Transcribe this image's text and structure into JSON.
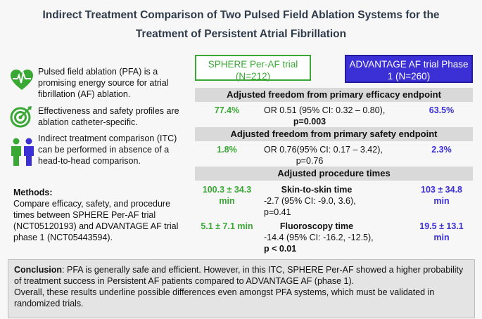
{
  "header": {
    "title": "Indirect Treatment Comparison of Two Pulsed Field Ablation Systems for the Treatment of Persistent Atrial Fibrillation"
  },
  "key_points": [
    "Pulsed field ablation (PFA) is a promising energy source for atrial fibrillation (AF) ablation.",
    "Effectiveness and safety profiles are ablation catheter-specific.",
    "Indirect treatment comparison (ITC) can be performed in absence of a head-to-head comparison."
  ],
  "methods": {
    "label": "Methods:",
    "text": "Compare efficacy, safety, and procedure times between SPHERE Per-AF trial (NCT05120193) and ADVANTAGE AF trial phase 1 (NCT05443594)."
  },
  "trials": [
    "SPHERE Per-AF trial (N=212)",
    "ADVANTAGE AF trial Phase 1 (N=260)"
  ],
  "sections": [
    {
      "title": "Adjusted freedom from primary efficacy endpoint",
      "rows": [
        {
          "left": "77.4%",
          "stat": "OR 0.51 (95% CI: 0.32 – 0.80),",
          "p": "p=0.003",
          "right": "63.5%"
        }
      ]
    },
    {
      "title": "Adjusted freedom from primary safety endpoint",
      "rows": [
        {
          "left": "1.8%",
          "stat": "OR 0.76(95% CI: 0.17 – 3.42),",
          "p": "p=0.76",
          "right": "2.3%"
        }
      ]
    },
    {
      "title": "Adjusted procedure times",
      "rows": [
        {
          "left": "100.3 ± 34.3 min",
          "label": "Skin-to-skin time",
          "stat": "-2.7 (95% CI: -9.0, 3.6),",
          "p": "p=0.41",
          "right": "103 ± 34.8 min"
        },
        {
          "left": "5.1 ± 7.1 min",
          "label": "Fluoroscopy time",
          "stat": "-14.4 (95% CI: -16.2, -12.5),",
          "p": "p < 0.01",
          "right": "19.5 ± 13.1 min"
        }
      ]
    }
  ],
  "conclusion": {
    "label": "Conclusion",
    "text": ": PFA is generally safe and efficient. However, in this ITC, SPHERE Per-AF showed a higher probability of treatment success in Persistent AF patients compared to ADVANTAGE AF (phase 1).",
    "text2": "Overall, these results underline possible differences even amongst PFA systems, which must be validated in randomized trials."
  }
}
